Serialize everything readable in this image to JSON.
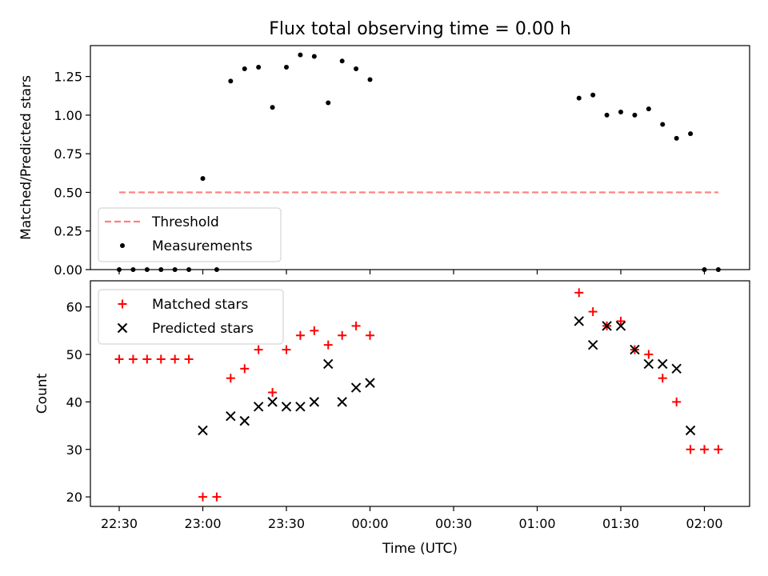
{
  "figure": {
    "title": "Flux total observing time = 0.00 h",
    "xlabel": "Time (UTC)"
  },
  "colors": {
    "threshold": "#ff7f7f",
    "measurements": "#000000",
    "matched": "#ff0000",
    "predicted": "#000000"
  },
  "chart_data": [
    {
      "type": "scatter",
      "ylabel": "Matched/Predicted stars",
      "ylim": [
        0,
        1.45
      ],
      "yticks": [
        0.0,
        0.25,
        0.5,
        0.75,
        1.0,
        1.25
      ],
      "ytick_labels": [
        "0.00",
        "0.25",
        "0.50",
        "0.75",
        "1.00",
        "1.25"
      ],
      "xticks_shown_labels": false,
      "legend_position": "lower-left",
      "threshold": {
        "name": "Threshold",
        "style": "dashed-line",
        "value": 0.5,
        "x_start": "22:30",
        "x_end": "02:05"
      },
      "series": [
        {
          "name": "Measurements",
          "marker": "dot",
          "points": [
            [
              "22:30",
              0.0
            ],
            [
              "22:35",
              0.0
            ],
            [
              "22:40",
              0.0
            ],
            [
              "22:45",
              0.0
            ],
            [
              "22:50",
              0.0
            ],
            [
              "22:55",
              0.0
            ],
            [
              "23:00",
              0.59
            ],
            [
              "23:05",
              0.0
            ],
            [
              "23:10",
              1.22
            ],
            [
              "23:15",
              1.3
            ],
            [
              "23:20",
              1.31
            ],
            [
              "23:25",
              1.05
            ],
            [
              "23:30",
              1.31
            ],
            [
              "23:35",
              1.39
            ],
            [
              "23:40",
              1.38
            ],
            [
              "23:45",
              1.08
            ],
            [
              "23:50",
              1.35
            ],
            [
              "23:55",
              1.3
            ],
            [
              "00:00",
              1.23
            ],
            [
              "01:15",
              1.11
            ],
            [
              "01:20",
              1.13
            ],
            [
              "01:25",
              1.0
            ],
            [
              "01:30",
              1.02
            ],
            [
              "01:35",
              1.0
            ],
            [
              "01:40",
              1.04
            ],
            [
              "01:45",
              0.94
            ],
            [
              "01:50",
              0.85
            ],
            [
              "01:55",
              0.88
            ],
            [
              "02:00",
              0.0
            ],
            [
              "02:05",
              0.0
            ]
          ]
        }
      ]
    },
    {
      "type": "scatter",
      "ylabel": "Count",
      "ylim": [
        18,
        65.5
      ],
      "yticks": [
        20,
        30,
        40,
        50,
        60
      ],
      "ytick_labels": [
        "20",
        "30",
        "40",
        "50",
        "60"
      ],
      "xticks": [
        "22:30",
        "23:00",
        "23:30",
        "00:00",
        "00:30",
        "01:00",
        "01:30",
        "02:00"
      ],
      "legend_position": "upper-left",
      "series": [
        {
          "name": "Matched stars",
          "marker": "plus",
          "points": [
            [
              "22:30",
              49
            ],
            [
              "22:35",
              49
            ],
            [
              "22:40",
              49
            ],
            [
              "22:45",
              49
            ],
            [
              "22:50",
              49
            ],
            [
              "22:55",
              49
            ],
            [
              "23:00",
              20
            ],
            [
              "23:05",
              20
            ],
            [
              "23:10",
              45
            ],
            [
              "23:15",
              47
            ],
            [
              "23:20",
              51
            ],
            [
              "23:25",
              42
            ],
            [
              "23:30",
              51
            ],
            [
              "23:35",
              54
            ],
            [
              "23:40",
              55
            ],
            [
              "23:45",
              52
            ],
            [
              "23:50",
              54
            ],
            [
              "23:55",
              56
            ],
            [
              "00:00",
              54
            ],
            [
              "01:15",
              63
            ],
            [
              "01:20",
              59
            ],
            [
              "01:25",
              56
            ],
            [
              "01:30",
              57
            ],
            [
              "01:35",
              51
            ],
            [
              "01:40",
              50
            ],
            [
              "01:45",
              45
            ],
            [
              "01:50",
              40
            ],
            [
              "01:55",
              30
            ],
            [
              "02:00",
              30
            ],
            [
              "02:05",
              30
            ]
          ]
        },
        {
          "name": "Predicted stars",
          "marker": "x",
          "points": [
            [
              "23:00",
              34
            ],
            [
              "23:10",
              37
            ],
            [
              "23:15",
              36
            ],
            [
              "23:20",
              39
            ],
            [
              "23:25",
              40
            ],
            [
              "23:30",
              39
            ],
            [
              "23:35",
              39
            ],
            [
              "23:40",
              40
            ],
            [
              "23:45",
              48
            ],
            [
              "23:50",
              40
            ],
            [
              "23:55",
              43
            ],
            [
              "00:00",
              44
            ],
            [
              "01:15",
              57
            ],
            [
              "01:20",
              52
            ],
            [
              "01:25",
              56
            ],
            [
              "01:30",
              56
            ],
            [
              "01:35",
              51
            ],
            [
              "01:40",
              48
            ],
            [
              "01:45",
              48
            ],
            [
              "01:50",
              47
            ],
            [
              "01:55",
              34
            ]
          ]
        }
      ]
    }
  ]
}
